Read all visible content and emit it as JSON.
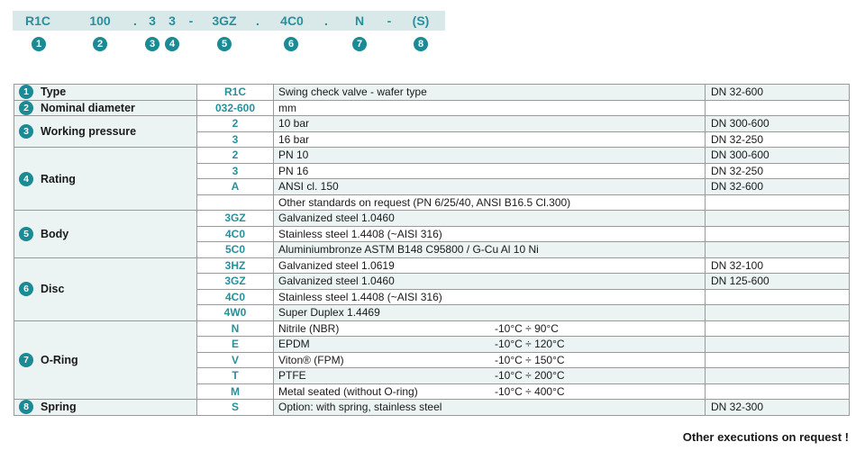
{
  "code": {
    "parts": [
      "R1C",
      "100",
      ".",
      "3",
      "3",
      "-",
      "3GZ",
      ".",
      "4C0",
      ".",
      "N",
      "-",
      "(S)"
    ],
    "numbers": [
      "1",
      "2",
      "3",
      "4",
      "5",
      "6",
      "7",
      "8"
    ]
  },
  "table": {
    "rows": [
      {
        "code": "R1C",
        "desc": "Swing check valve - wafer type",
        "dn": "DN 32-600"
      },
      {
        "code": "032-600",
        "desc": "mm",
        "dn": ""
      },
      {
        "code": "2",
        "desc": "10 bar",
        "dn": "DN 300-600"
      },
      {
        "code": "3",
        "desc": "16 bar",
        "dn": "DN 32-250"
      },
      {
        "code": "2",
        "desc": "PN 10",
        "dn": "DN 300-600"
      },
      {
        "code": "3",
        "desc": "PN 16",
        "dn": "DN 32-250"
      },
      {
        "code": "A",
        "desc": "ANSI cl. 150",
        "dn": "DN 32-600"
      },
      {
        "code": "",
        "desc": "Other standards on request (PN 6/25/40, ANSI B16.5 Cl.300)",
        "dn": ""
      },
      {
        "code": "3GZ",
        "desc": "Galvanized steel 1.0460",
        "dn": ""
      },
      {
        "code": "4C0",
        "desc": "Stainless steel 1.4408 (~AISI 316)",
        "dn": ""
      },
      {
        "code": "5C0",
        "desc": "Aluminiumbronze ASTM B148 C95800 / G-Cu Al 10 Ni",
        "dn": ""
      },
      {
        "code": "3HZ",
        "desc": "Galvanized steel 1.0619",
        "dn": "DN 32-100"
      },
      {
        "code": "3GZ",
        "desc": "Galvanized steel 1.0460",
        "dn": "DN 125-600"
      },
      {
        "code": "4C0",
        "desc": "Stainless steel 1.4408 (~AISI 316)",
        "dn": ""
      },
      {
        "code": "4W0",
        "desc": "Super Duplex 1.4469",
        "dn": ""
      },
      {
        "code": "N",
        "desc": "Nitrile (NBR)",
        "temp": "-10°C ÷  90°C",
        "dn": ""
      },
      {
        "code": "E",
        "desc": "EPDM",
        "temp": "-10°C ÷ 120°C",
        "dn": ""
      },
      {
        "code": "V",
        "desc": "Viton® (FPM)",
        "temp": "-10°C ÷ 150°C",
        "dn": ""
      },
      {
        "code": "T",
        "desc": "PTFE",
        "temp": "-10°C ÷ 200°C",
        "dn": ""
      },
      {
        "code": "M",
        "desc": "Metal seated (without O-ring)",
        "temp": "-10°C ÷ 400°C",
        "dn": ""
      },
      {
        "code": "S",
        "desc": "Option: with spring, stainless steel",
        "dn": "DN 32-300"
      }
    ],
    "params": [
      {
        "num": "1",
        "name": "Type"
      },
      {
        "num": "2",
        "name": "Nominal diameter"
      },
      {
        "num": "3",
        "name": "Working pressure"
      },
      {
        "num": "4",
        "name": "Rating"
      },
      {
        "num": "5",
        "name": "Body"
      },
      {
        "num": "6",
        "name": "Disc"
      },
      {
        "num": "7",
        "name": "O-Ring"
      },
      {
        "num": "8",
        "name": "Spring"
      }
    ]
  },
  "footer": {
    "note": "Other executions on request !"
  },
  "colors": {
    "accent": "#2a8f9c",
    "circle": "#1a8a95",
    "header_band": "#d9e9ea",
    "param_cell": "#ecf3f3"
  }
}
